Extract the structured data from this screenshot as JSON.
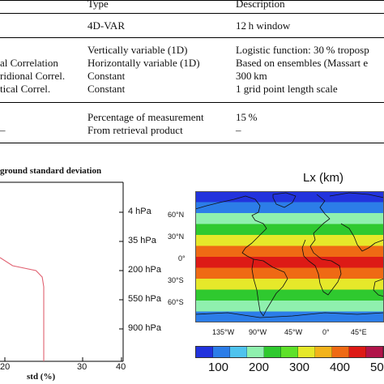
{
  "table": {
    "header": {
      "type": "Type",
      "description": "Description"
    },
    "rows": [
      {
        "param": "",
        "type": "4D-VAR",
        "description": "12 h window"
      },
      {
        "param": "",
        "type": "Vertically variable (1D)",
        "description": "Logistic function: 30 % troposр"
      },
      {
        "param": "al Correlation",
        "type": "Horizontally variable (1D)",
        "description": "Based on ensembles (Massart e"
      },
      {
        "param": "ridional Correl.",
        "type": "Constant",
        "description": "300 km"
      },
      {
        "param": "tical Correl.",
        "type": "Constant",
        "description": "1 grid point length scale"
      },
      {
        "param": "",
        "type": "Percentage of measurement",
        "description": "15 %"
      },
      {
        "param": "–",
        "type": "From retrieval product",
        "description": "–"
      }
    ]
  },
  "left_figure": {
    "title": "ground standard deviation",
    "xlabel": "std (%)",
    "x_ticks": [
      "20",
      "30",
      "40"
    ],
    "y_ticks": [
      "4 hPa",
      "35 hPa",
      "200 hPa",
      "550 hPa",
      "900 hPa"
    ],
    "line_color": "#e06070"
  },
  "right_figure": {
    "title": "Lx (km)",
    "lat_labels": [
      "60°N",
      "30°N",
      "0°",
      "30°S",
      "60°S"
    ],
    "lon_labels": [
      "135°W",
      "90°W",
      "45°W",
      "0°",
      "45°E"
    ],
    "colorbar_labels": [
      "100",
      "200",
      "300",
      "400",
      "500"
    ],
    "colorbar_colors": [
      "#2233dd",
      "#2c7de8",
      "#4fc3ee",
      "#8ff0ae",
      "#2fc92f",
      "#5ee12a",
      "#e6e82a",
      "#f2b31c",
      "#ef6a14",
      "#dd1a16",
      "#b1154a"
    ]
  },
  "chart_data": [
    {
      "type": "line",
      "title": "ground standard deviation",
      "xlabel": "std (%)",
      "ylabel": "",
      "x_ticks": [
        20,
        30,
        40
      ],
      "y_ticks": [
        "4 hPa",
        "35 hPa",
        "200 hPa",
        "550 hPa",
        "900 hPa"
      ],
      "series": [
        {
          "x": [
            15,
            22,
            28,
            29.6,
            30,
            30,
            30,
            30
          ],
          "y": [
            "100 hPa",
            "150 hPa",
            "200 hPa",
            "260 hPa",
            "350 hPa",
            "550 hPa",
            "900 hPa",
            "1000 hPa"
          ]
        }
      ],
      "xlim": [
        15,
        40
      ]
    },
    {
      "type": "heatmap",
      "title": "Lx (km)",
      "colorbar_ticks": [
        100,
        200,
        300,
        400,
        500
      ],
      "latitude_bands_deg": [
        90,
        75,
        60,
        45,
        30,
        15,
        0,
        -15,
        -30,
        -45,
        -60,
        -75,
        -90
      ],
      "values_by_band_km": [
        50,
        100,
        200,
        250,
        350,
        450,
        500,
        450,
        350,
        250,
        200,
        100
      ]
    }
  ]
}
